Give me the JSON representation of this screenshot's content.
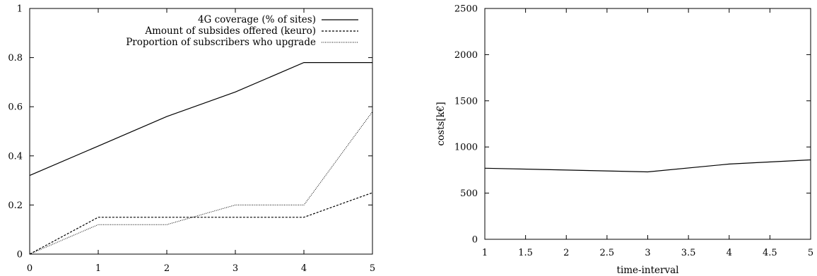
{
  "chart_data": [
    {
      "type": "line",
      "x": [
        0,
        1,
        2,
        3,
        4,
        5
      ],
      "xlim": [
        0,
        5
      ],
      "ylim": [
        0,
        1
      ],
      "xticks": [
        "0",
        "1",
        "2",
        "3",
        "4",
        "5"
      ],
      "yticks": [
        "0",
        "0.2",
        "0.4",
        "0.6",
        "0.8",
        "1"
      ],
      "xlabel": "",
      "ylabel": "",
      "grid": false,
      "legend_position": "top-right",
      "series": [
        {
          "name": "4G coverage (% of sites)",
          "values": [
            0.32,
            0.44,
            0.56,
            0.66,
            0.78,
            0.78
          ],
          "style": "solid"
        },
        {
          "name": "Amount of subsides offered (keuro)",
          "values": [
            0.0,
            0.15,
            0.15,
            0.15,
            0.15,
            0.25
          ],
          "style": "dashed"
        },
        {
          "name": "Proportion of subscribers who upgrade",
          "values": [
            0.0,
            0.12,
            0.12,
            0.2,
            0.2,
            0.58
          ],
          "style": "dotted"
        }
      ]
    },
    {
      "type": "line",
      "x": [
        1,
        2,
        3,
        4,
        5
      ],
      "xlim": [
        1,
        5
      ],
      "ylim": [
        0,
        2500
      ],
      "xticks": [
        "1",
        "1.5",
        "2",
        "2.5",
        "3",
        "3.5",
        "4",
        "4.5",
        "5"
      ],
      "yticks": [
        "0",
        "500",
        "1000",
        "1500",
        "2000",
        "2500"
      ],
      "xlabel": "time-interval",
      "ylabel": "costs[k€]",
      "grid": false,
      "series": [
        {
          "values": [
            770,
            750,
            730,
            815,
            860
          ],
          "style": "solid"
        }
      ]
    }
  ]
}
